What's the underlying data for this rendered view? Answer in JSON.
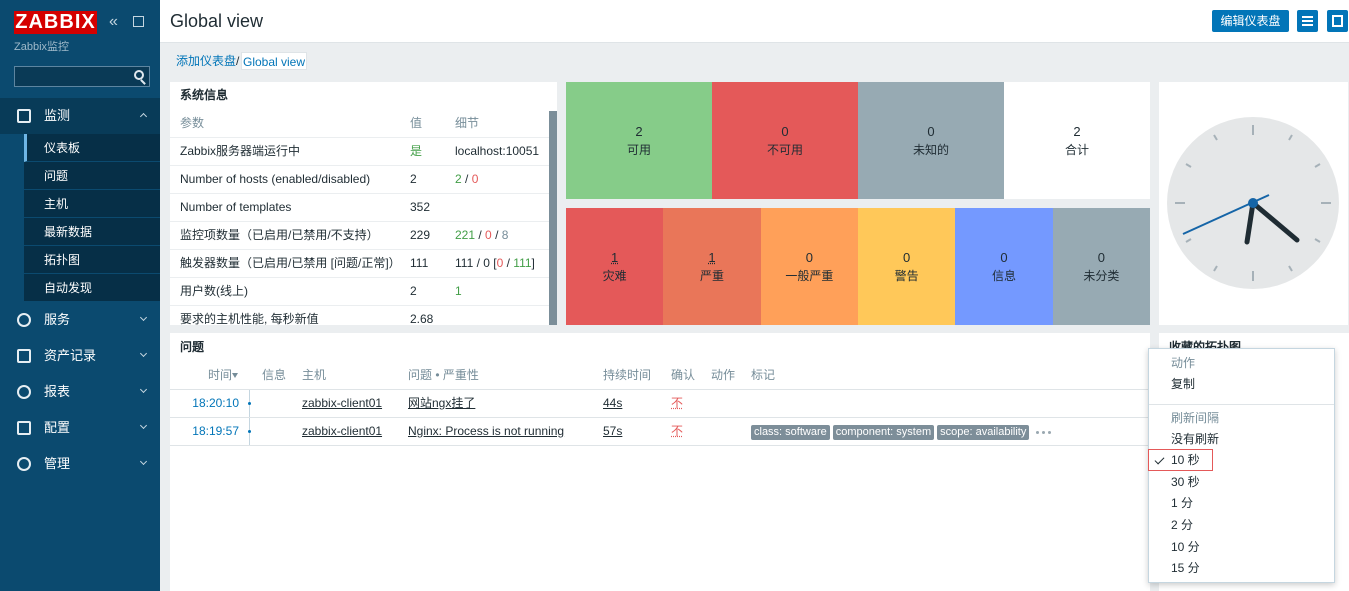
{
  "sidebar": {
    "logo": "ZABBIX",
    "subtitle": "Zabbix监控",
    "menu": [
      {
        "label": "监测",
        "expanded": true,
        "items": [
          {
            "label": "仪表板",
            "selected": true
          },
          {
            "label": "问题"
          },
          {
            "label": "主机"
          },
          {
            "label": "最新数据"
          },
          {
            "label": "拓扑图"
          },
          {
            "label": "自动发现"
          }
        ]
      },
      {
        "label": "服务"
      },
      {
        "label": "资产记录"
      },
      {
        "label": "报表"
      },
      {
        "label": "配置"
      },
      {
        "label": "管理"
      }
    ]
  },
  "header": {
    "title": "Global view",
    "button": "编辑仪表盘"
  },
  "breadcrumb": {
    "items": [
      "添加仪表盘",
      "Global view"
    ],
    "separator": "/"
  },
  "system_info": {
    "title": "系统信息",
    "columns": [
      "参数",
      "值",
      "细节"
    ],
    "rows": [
      {
        "param": "Zabbix服务器端运行中",
        "value": "是",
        "value_color": "#429e47",
        "detail": [
          {
            "text": "localhost:10051"
          }
        ]
      },
      {
        "param": "Number of hosts (enabled/disabled)",
        "value": "2",
        "detail": [
          {
            "text": "2",
            "color": "#429e47"
          },
          {
            "text": " / "
          },
          {
            "text": "0",
            "color": "#e45959"
          }
        ]
      },
      {
        "param": "Number of templates",
        "value": "352",
        "detail": []
      },
      {
        "param": "监控项数量（已启用/已禁用/不支持）",
        "value": "229",
        "detail": [
          {
            "text": "221",
            "color": "#429e47"
          },
          {
            "text": " / "
          },
          {
            "text": "0",
            "color": "#e45959"
          },
          {
            "text": " / "
          },
          {
            "text": "8",
            "color": "#768d99"
          }
        ]
      },
      {
        "param": "触发器数量（已启用/已禁用 [问题/正常]）",
        "value": "111",
        "detail": [
          {
            "text": "111 / 0 ["
          },
          {
            "text": "0",
            "color": "#e45959"
          },
          {
            "text": " / "
          },
          {
            "text": "111",
            "color": "#429e47"
          },
          {
            "text": "]"
          }
        ]
      },
      {
        "param": "用户数(线上)",
        "value": "2",
        "detail": [
          {
            "text": "1",
            "color": "#429e47"
          }
        ]
      },
      {
        "param": "要求的主机性能, 每秒新值",
        "value": "2.68",
        "detail": []
      }
    ]
  },
  "host_availability": [
    {
      "value": 2,
      "label": "可用",
      "color": "#86cc89"
    },
    {
      "value": 0,
      "label": "不可用",
      "color": "#e45959"
    },
    {
      "value": 0,
      "label": "未知的",
      "color": "#97aab3"
    },
    {
      "value": 2,
      "label": "合计",
      "color": "#ffffff"
    }
  ],
  "problems_by_severity": [
    {
      "value": 1,
      "label": "灾难",
      "color": "#e45959"
    },
    {
      "value": 1,
      "label": "严重",
      "color": "#e97659"
    },
    {
      "value": 0,
      "label": "一般严重",
      "color": "#ffa059"
    },
    {
      "value": 0,
      "label": "警告",
      "color": "#ffc859"
    },
    {
      "value": 0,
      "label": "信息",
      "color": "#7499ff"
    },
    {
      "value": 0,
      "label": "未分类",
      "color": "#97aab3"
    }
  ],
  "problems": {
    "title": "问题",
    "columns": [
      "时间",
      "信息",
      "主机",
      "问题 • 严重性",
      "持续时间",
      "确认",
      "动作",
      "标记"
    ],
    "rows": [
      {
        "time": "18:20:10",
        "host": "zabbix-client01",
        "problem": "网站ngx挂了",
        "duration": "44s",
        "ack": "不",
        "tags": []
      },
      {
        "time": "18:19:57",
        "host": "zabbix-client01",
        "problem": "Nginx: Process is not running",
        "duration": "57s",
        "ack": "不",
        "tags": [
          "class: software",
          "component: system",
          "scope: availability"
        ]
      }
    ]
  },
  "favorite_maps": {
    "title": "收藏的拓扑图"
  },
  "context_menu": {
    "sections": [
      {
        "title": "动作",
        "items": [
          {
            "label": "复制"
          }
        ]
      },
      {
        "title": "刷新间隔",
        "items": [
          {
            "label": "没有刷新"
          },
          {
            "label": "10 秒",
            "checked": true
          },
          {
            "label": "30 秒"
          },
          {
            "label": "1 分"
          },
          {
            "label": "2 分"
          },
          {
            "label": "10 分"
          },
          {
            "label": "15 分"
          }
        ]
      }
    ]
  }
}
